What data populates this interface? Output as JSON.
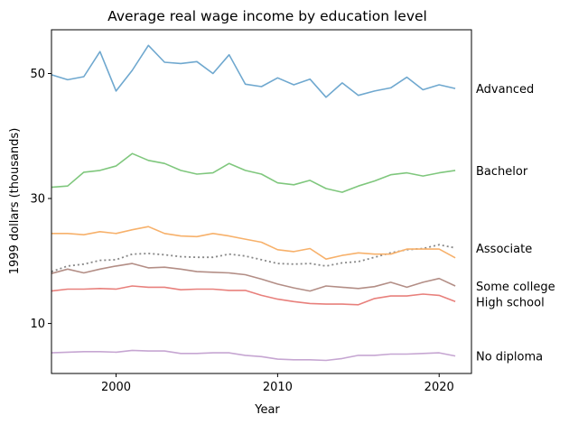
{
  "chart_data": {
    "type": "line",
    "title": "Average real wage income by education level",
    "xlabel": "Year",
    "ylabel": "1999 dollars (thousands)",
    "xlim": [
      1996,
      2022
    ],
    "ylim": [
      2,
      57
    ],
    "xticks": [
      2000,
      2010,
      2020
    ],
    "yticks": [
      10,
      30,
      50
    ],
    "grid": false,
    "legend": "labels at right end of each line",
    "x": [
      1996,
      1997,
      1998,
      1999,
      2000,
      2001,
      2002,
      2003,
      2004,
      2005,
      2006,
      2007,
      2008,
      2009,
      2010,
      2011,
      2012,
      2013,
      2014,
      2015,
      2016,
      2017,
      2018,
      2019,
      2020,
      2021
    ],
    "series": [
      {
        "name": "Advanced",
        "color": "#6fa8cf",
        "dash": false,
        "values": [
          49.8,
          49.0,
          49.5,
          53.5,
          47.2,
          50.5,
          54.5,
          51.8,
          51.6,
          51.9,
          50.0,
          53.0,
          48.3,
          47.9,
          49.3,
          48.2,
          49.1,
          46.2,
          48.5,
          46.5,
          47.2,
          47.7,
          49.4,
          47.4,
          48.2,
          47.6
        ]
      },
      {
        "name": "Bachelor",
        "color": "#7fc77d",
        "dash": false,
        "values": [
          31.8,
          32.0,
          34.2,
          34.5,
          35.2,
          37.2,
          36.1,
          35.6,
          34.5,
          33.9,
          34.1,
          35.6,
          34.5,
          33.9,
          32.5,
          32.2,
          32.9,
          31.6,
          31.0,
          32.0,
          32.8,
          33.8,
          34.1,
          33.6,
          34.1,
          34.5
        ]
      },
      {
        "name": "Associate",
        "color": "#888888",
        "dash": true,
        "values": [
          18.3,
          19.2,
          19.5,
          20.1,
          20.2,
          21.1,
          21.2,
          21.0,
          20.7,
          20.6,
          20.6,
          21.1,
          20.8,
          20.2,
          19.6,
          19.5,
          19.6,
          19.2,
          19.7,
          19.9,
          20.6,
          21.3,
          21.8,
          22.0,
          22.6,
          22.1
        ]
      },
      {
        "name": "",
        "color": "#f7b16b",
        "dash": false,
        "values": [
          24.4,
          24.4,
          24.2,
          24.7,
          24.4,
          25.0,
          25.5,
          24.4,
          24.0,
          23.9,
          24.4,
          24.0,
          23.5,
          23.0,
          21.8,
          21.5,
          22.0,
          20.3,
          20.9,
          21.3,
          21.1,
          21.1,
          21.9,
          21.9,
          21.9,
          20.5
        ]
      },
      {
        "name": "Some college",
        "color": "#b38e86",
        "dash": false,
        "values": [
          18.0,
          18.7,
          18.1,
          18.7,
          19.2,
          19.6,
          18.9,
          19.0,
          18.7,
          18.3,
          18.2,
          18.1,
          17.8,
          17.1,
          16.3,
          15.7,
          15.2,
          16.0,
          15.8,
          15.6,
          15.9,
          16.6,
          15.8,
          16.6,
          17.2,
          16.0
        ]
      },
      {
        "name": "High school",
        "color": "#e8807c",
        "dash": false,
        "values": [
          15.2,
          15.5,
          15.5,
          15.6,
          15.5,
          16.0,
          15.8,
          15.8,
          15.4,
          15.5,
          15.5,
          15.3,
          15.3,
          14.5,
          13.9,
          13.5,
          13.2,
          13.1,
          13.1,
          13.0,
          14.0,
          14.4,
          14.4,
          14.7,
          14.5,
          13.5
        ]
      },
      {
        "name": "No diploma",
        "color": "#c6a6d2",
        "dash": false,
        "values": [
          5.3,
          5.4,
          5.5,
          5.5,
          5.4,
          5.7,
          5.6,
          5.6,
          5.2,
          5.2,
          5.3,
          5.3,
          4.9,
          4.7,
          4.3,
          4.2,
          4.2,
          4.1,
          4.4,
          4.9,
          4.9,
          5.1,
          5.1,
          5.2,
          5.3,
          4.8
        ]
      }
    ]
  }
}
